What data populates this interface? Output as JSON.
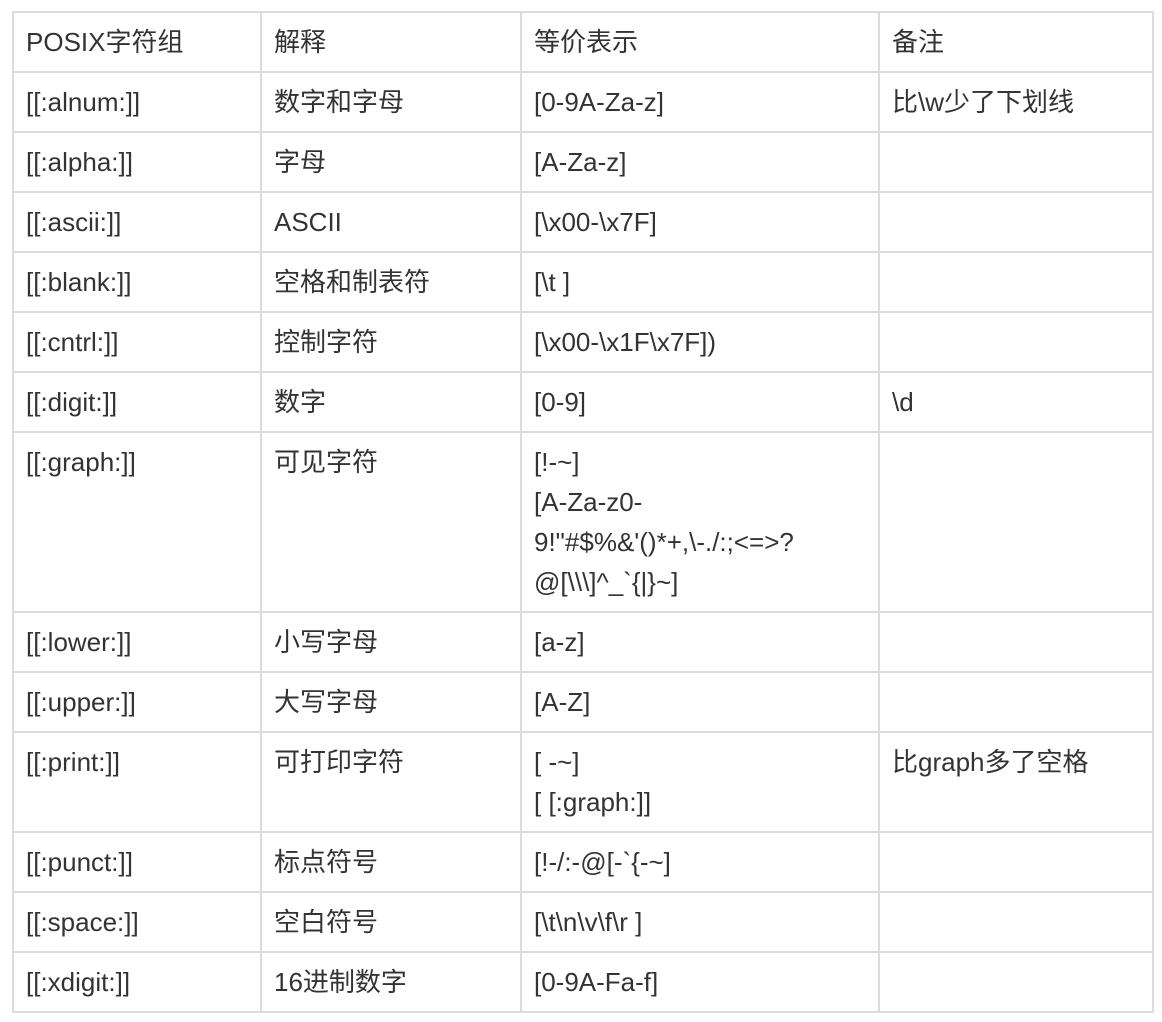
{
  "table": {
    "headers": [
      "POSIX字符组",
      "解释",
      "等价表示",
      "备注"
    ],
    "rows": [
      {
        "posix": "[[:alnum:]]",
        "desc": "数字和字母",
        "equiv": [
          "[0-9A-Za-z]"
        ],
        "note": "比\\w少了下划线"
      },
      {
        "posix": "[[:alpha:]]",
        "desc": "字母",
        "equiv": [
          "[A-Za-z]"
        ],
        "note": ""
      },
      {
        "posix": "[[:ascii:]]",
        "desc": "ASCII",
        "equiv": [
          "[\\x00-\\x7F]"
        ],
        "note": ""
      },
      {
        "posix": "[[:blank:]]",
        "desc": "空格和制表符",
        "equiv": [
          "[\\t ]"
        ],
        "note": ""
      },
      {
        "posix": "[[:cntrl:]]",
        "desc": "控制字符",
        "equiv": [
          "[\\x00-\\x1F\\x7F])"
        ],
        "note": ""
      },
      {
        "posix": "[[:digit:]]",
        "desc": "数字",
        "equiv": [
          "[0-9]"
        ],
        "note": "\\d"
      },
      {
        "posix": "[[:graph:]]",
        "desc": "可见字符",
        "equiv": [
          "[!-~]",
          "[A-Za-z0-",
          "9!\"#$%&'()*+,\\-./:;<=>?",
          "@[\\\\\\]^_`{|}~]"
        ],
        "note": ""
      },
      {
        "posix": "[[:lower:]]",
        "desc": "小写字母",
        "equiv": [
          "[a-z]"
        ],
        "note": ""
      },
      {
        "posix": "[[:upper:]]",
        "desc": "大写字母",
        "equiv": [
          "[A-Z]"
        ],
        "note": ""
      },
      {
        "posix": "[[:print:]]",
        "desc": "可打印字符",
        "equiv": [
          "[ -~]",
          "[ [:graph:]]"
        ],
        "note": "比graph多了空格"
      },
      {
        "posix": "[[:punct:]]",
        "desc": "标点符号",
        "equiv": [
          "[!-/:-@[-`{-~]"
        ],
        "note": ""
      },
      {
        "posix": "[[:space:]]",
        "desc": "空白符号",
        "equiv": [
          "[\\t\\n\\v\\f\\r ]"
        ],
        "note": ""
      },
      {
        "posix": "[[:xdigit:]]",
        "desc": "16进制数字",
        "equiv": [
          "[0-9A-Fa-f]"
        ],
        "note": ""
      }
    ]
  }
}
